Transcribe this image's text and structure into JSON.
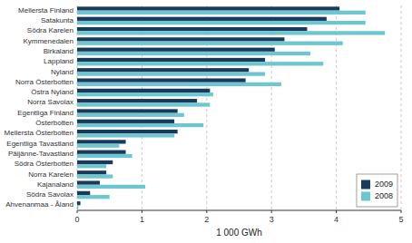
{
  "chart_data": {
    "type": "bar",
    "orientation": "horizontal",
    "categories": [
      "Mellersta Finland",
      "Satakunta",
      "Södra Karelen",
      "Kymmenedalen",
      "Birkaland",
      "Lappland",
      "Nyland",
      "Norra Österbotten",
      "Östra Nyland",
      "Norra Savolax",
      "Egentliga Finland",
      "Österbotten",
      "Mellersta Österbotten",
      "Egentliga Tavastland",
      "Päijänne-Tavastland",
      "Södra Österbotten",
      "Norra Karelen",
      "Kajanaland",
      "Södra Savolax",
      "Ahvenanmaa - Åland"
    ],
    "series": [
      {
        "name": "2009",
        "color": "#1a3a5c",
        "values": [
          4.05,
          3.85,
          3.55,
          3.2,
          3.05,
          2.9,
          2.65,
          2.6,
          2.05,
          1.85,
          1.55,
          1.5,
          1.55,
          0.75,
          0.75,
          0.55,
          0.45,
          0.35,
          0.2,
          0.05
        ]
      },
      {
        "name": "2008",
        "color": "#6ec6d0",
        "values": [
          4.45,
          4.45,
          4.75,
          4.1,
          3.6,
          3.8,
          2.9,
          3.15,
          2.1,
          2.05,
          1.65,
          1.95,
          1.5,
          0.65,
          0.85,
          0.45,
          0.55,
          1.05,
          0.5,
          0.02
        ]
      }
    ],
    "x_label": "1 000 GWh",
    "xlim": [
      0,
      5
    ],
    "xticks": [
      0,
      1,
      2,
      3,
      4,
      5
    ],
    "grid": true,
    "legend": "lower right"
  }
}
